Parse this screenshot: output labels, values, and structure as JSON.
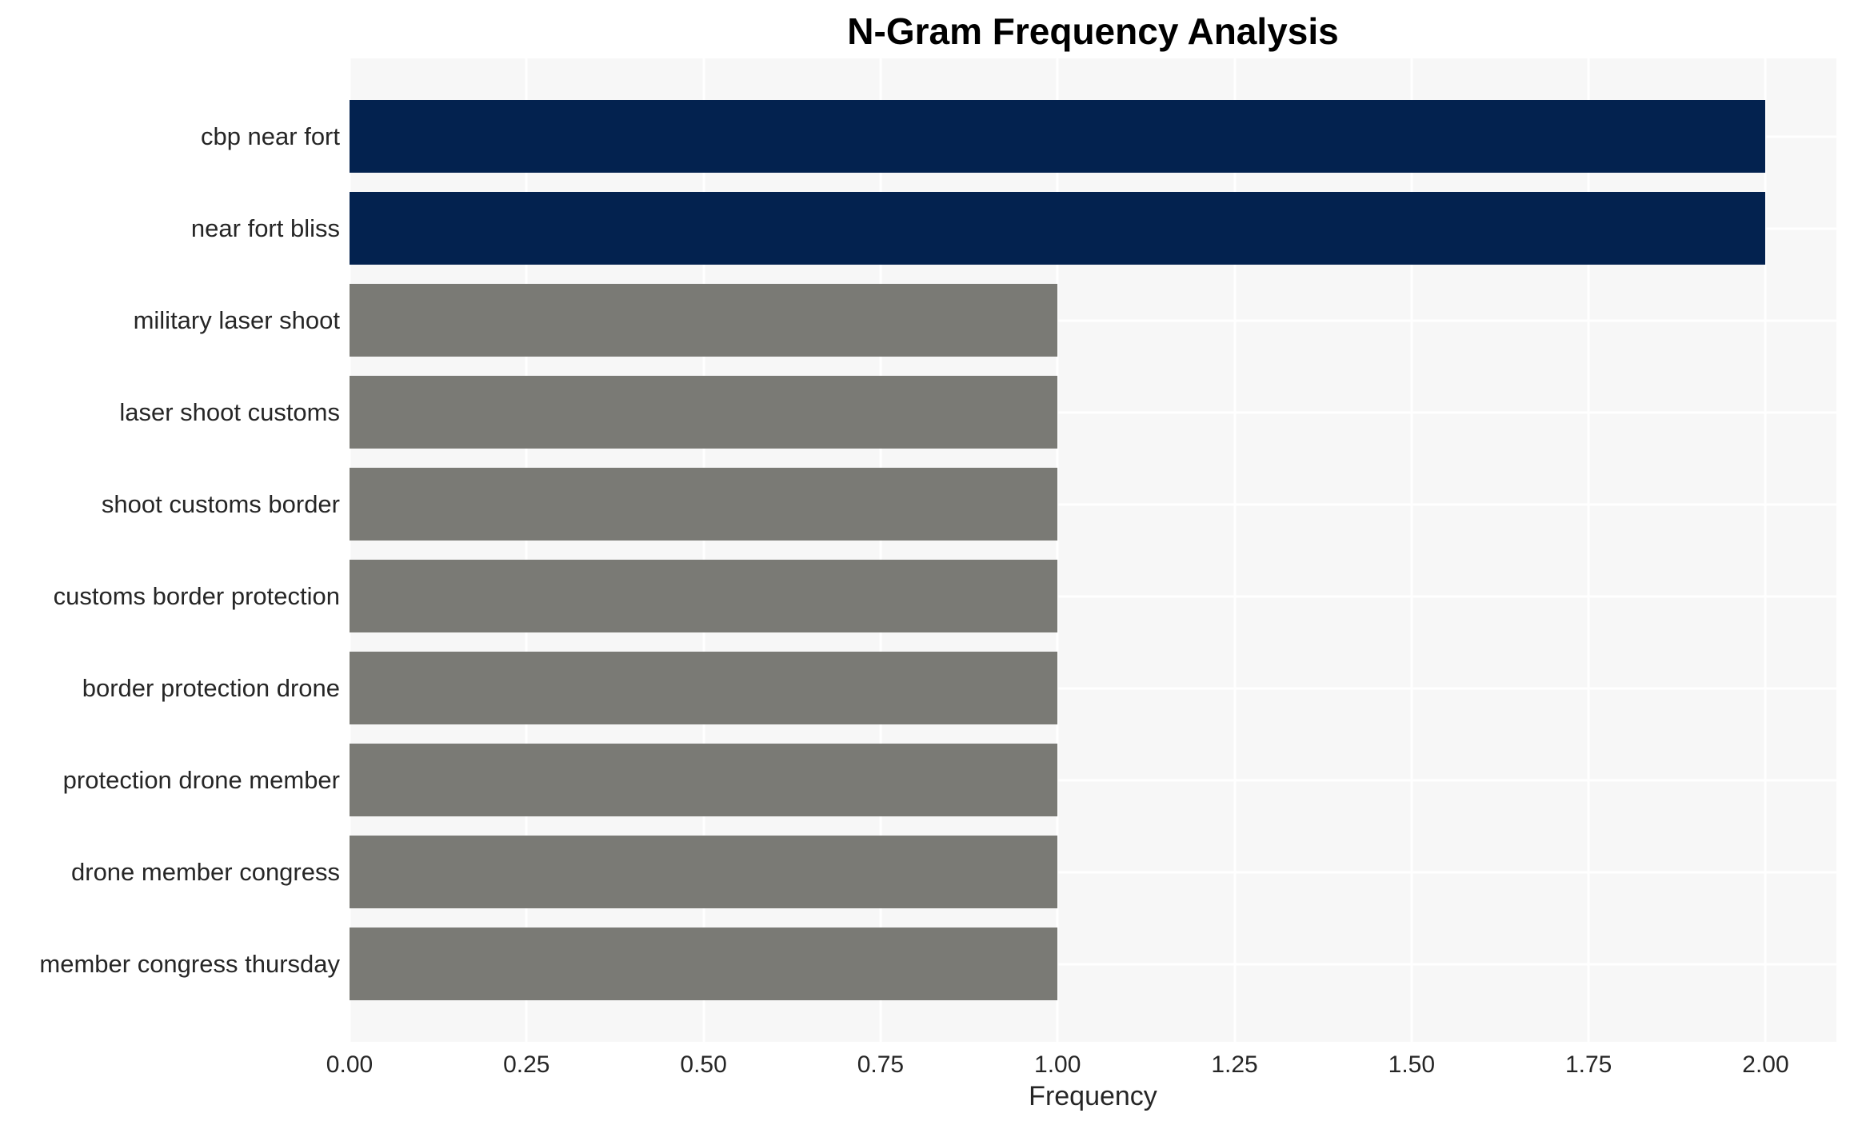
{
  "chart_data": {
    "type": "bar",
    "orientation": "horizontal",
    "title": "N-Gram Frequency Analysis",
    "xlabel": "Frequency",
    "ylabel": "",
    "categories": [
      "cbp near fort",
      "near fort bliss",
      "military laser shoot",
      "laser shoot customs",
      "shoot customs border",
      "customs border protection",
      "border protection drone",
      "protection drone member",
      "drone member congress",
      "member congress thursday"
    ],
    "values": [
      2,
      2,
      1,
      1,
      1,
      1,
      1,
      1,
      1,
      1
    ],
    "bar_colors": [
      "#03224f",
      "#03224f",
      "#7a7a75",
      "#7a7a75",
      "#7a7a75",
      "#7a7a75",
      "#7a7a75",
      "#7a7a75",
      "#7a7a75",
      "#7a7a75"
    ],
    "xlim": [
      0,
      2.1
    ],
    "xticks": [
      0,
      0.25,
      0.5,
      0.75,
      1.0,
      1.25,
      1.5,
      1.75,
      2.0
    ],
    "xtick_labels": [
      "0.00",
      "0.25",
      "0.50",
      "0.75",
      "1.00",
      "1.25",
      "1.50",
      "1.75",
      "2.00"
    ],
    "grid": true,
    "legend": false,
    "colors": {
      "highlight": "#03224f",
      "default": "#7a7a75",
      "plot_background": "#f7f7f7",
      "gridline": "#ffffff",
      "text": "#262626",
      "title": "#000000"
    }
  }
}
